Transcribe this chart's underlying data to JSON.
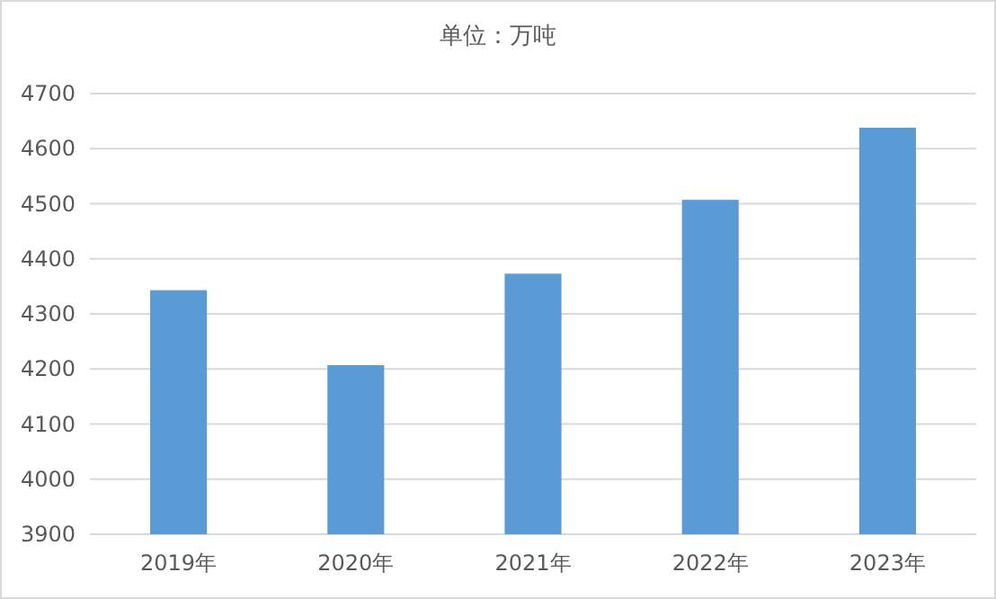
{
  "chart_data": {
    "type": "bar",
    "title": "单位：万吨",
    "categories": [
      "2019年",
      "2020年",
      "2021年",
      "2022年",
      "2023年"
    ],
    "values": [
      4343,
      4207,
      4373,
      4507,
      4638
    ],
    "color": "#5b9bd5",
    "ylim": [
      3900,
      4700
    ],
    "yticks": [
      3900,
      4000,
      4100,
      4200,
      4300,
      4400,
      4500,
      4600,
      4700
    ],
    "grid": "y"
  }
}
